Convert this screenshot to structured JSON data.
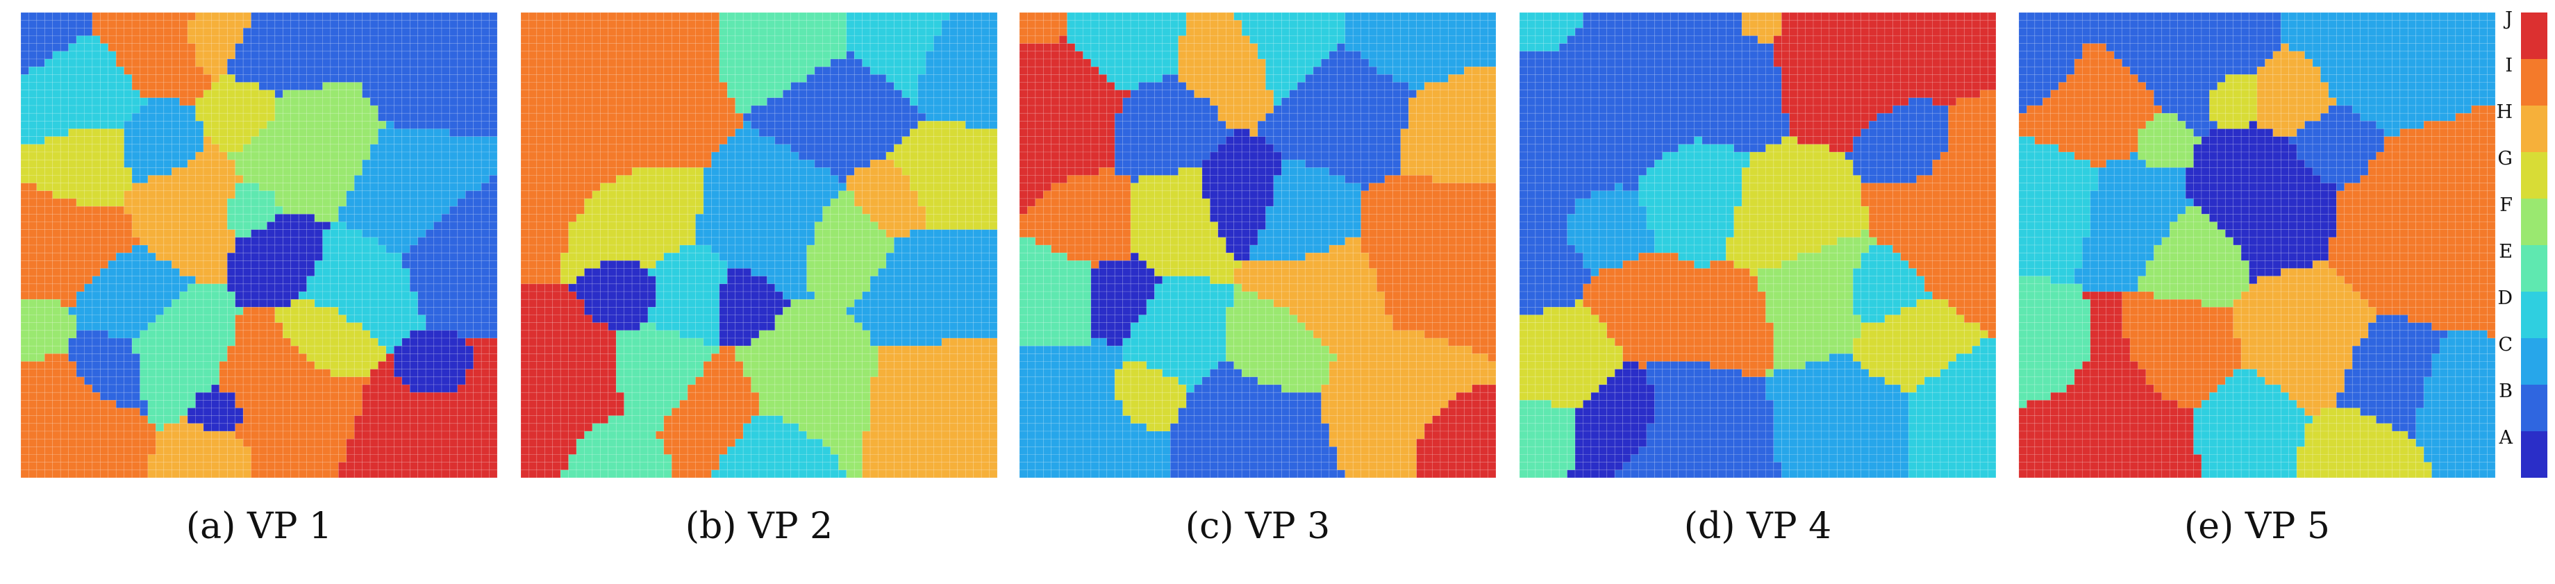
{
  "chart_data": {
    "type": "heatmap",
    "grid_size": 60,
    "categories": [
      "A",
      "B",
      "C",
      "D",
      "E",
      "F",
      "G",
      "H",
      "I",
      "J"
    ],
    "colors": {
      "A": "#2a2ec8",
      "B": "#2f66e0",
      "C": "#27a6ea",
      "D": "#2fcfe0",
      "E": "#5fe8b0",
      "F": "#9ae870",
      "G": "#d8dc36",
      "H": "#f6b03a",
      "I": "#f47a2a",
      "J": "#dc3030"
    },
    "colorbar": {
      "labels": [
        "J",
        "I",
        "H",
        "G",
        "F",
        "E",
        "D",
        "C",
        "B",
        "A"
      ],
      "placement": "right"
    },
    "panels": [
      {
        "caption": "(a) VP 1",
        "background": "D",
        "regions": [
          [
            "B",
            0.0,
            0.05,
            0.18
          ],
          [
            "I",
            0.3,
            0.0,
            0.17
          ],
          [
            "H",
            0.4,
            0.02,
            0.12
          ],
          [
            "B",
            0.55,
            0.08,
            0.14
          ],
          [
            "F",
            0.58,
            0.28,
            0.16
          ],
          [
            "G",
            0.48,
            0.22,
            0.1
          ],
          [
            "B",
            0.86,
            0.1,
            0.14
          ],
          [
            "C",
            0.82,
            0.4,
            0.14
          ],
          [
            "D",
            0.08,
            0.16,
            0.16
          ],
          [
            "G",
            0.12,
            0.34,
            0.13
          ],
          [
            "I",
            0.08,
            0.48,
            0.16
          ],
          [
            "H",
            0.35,
            0.4,
            0.14
          ],
          [
            "C",
            0.3,
            0.3,
            0.1
          ],
          [
            "A",
            0.55,
            0.52,
            0.1
          ],
          [
            "E",
            0.48,
            0.42,
            0.07
          ],
          [
            "D",
            0.7,
            0.58,
            0.12
          ],
          [
            "B",
            0.92,
            0.5,
            0.13
          ],
          [
            "C",
            0.22,
            0.62,
            0.12
          ],
          [
            "E",
            0.32,
            0.72,
            0.12
          ],
          [
            "I",
            0.08,
            0.85,
            0.14
          ],
          [
            "B",
            0.18,
            0.76,
            0.1
          ],
          [
            "I",
            0.55,
            0.82,
            0.15
          ],
          [
            "G",
            0.64,
            0.7,
            0.1
          ],
          [
            "J",
            0.86,
            0.92,
            0.15
          ],
          [
            "A",
            0.86,
            0.78,
            0.07
          ],
          [
            "H",
            0.4,
            0.95,
            0.08
          ],
          [
            "F",
            0.04,
            0.68,
            0.08
          ],
          [
            "A",
            0.42,
            0.86,
            0.06
          ]
        ]
      },
      {
        "caption": "(b) VP 2",
        "background": "C",
        "regions": [
          [
            "I",
            0.15,
            0.25,
            0.2
          ],
          [
            "I",
            0.22,
            0.05,
            0.14
          ],
          [
            "E",
            0.6,
            0.05,
            0.14
          ],
          [
            "B",
            0.68,
            0.18,
            0.14
          ],
          [
            "D",
            0.78,
            0.04,
            0.16
          ],
          [
            "C",
            0.92,
            0.1,
            0.12
          ],
          [
            "G",
            0.88,
            0.35,
            0.1
          ],
          [
            "H",
            0.78,
            0.4,
            0.08
          ],
          [
            "G",
            0.24,
            0.42,
            0.13
          ],
          [
            "D",
            0.36,
            0.6,
            0.1
          ],
          [
            "C",
            0.52,
            0.45,
            0.14
          ],
          [
            "F",
            0.68,
            0.5,
            0.1
          ],
          [
            "C",
            0.85,
            0.6,
            0.12
          ],
          [
            "J",
            0.08,
            0.8,
            0.13
          ],
          [
            "A",
            0.46,
            0.62,
            0.08
          ],
          [
            "E",
            0.3,
            0.78,
            0.1
          ],
          [
            "I",
            0.4,
            0.85,
            0.1
          ],
          [
            "F",
            0.6,
            0.78,
            0.12
          ],
          [
            "H",
            0.88,
            0.82,
            0.12
          ],
          [
            "D",
            0.52,
            0.95,
            0.09
          ],
          [
            "A",
            0.22,
            0.6,
            0.07
          ],
          [
            "E",
            0.2,
            0.95,
            0.08
          ]
        ]
      },
      {
        "caption": "(c) VP 3",
        "background": "F",
        "regions": [
          [
            "J",
            0.06,
            0.18,
            0.16
          ],
          [
            "I",
            0.04,
            0.02,
            0.08
          ],
          [
            "D",
            0.2,
            0.05,
            0.12
          ],
          [
            "D",
            0.55,
            0.05,
            0.12
          ],
          [
            "H",
            0.45,
            0.1,
            0.1
          ],
          [
            "C",
            0.8,
            0.05,
            0.12
          ],
          [
            "B",
            0.7,
            0.2,
            0.13
          ],
          [
            "H",
            0.9,
            0.25,
            0.1
          ],
          [
            "B",
            0.3,
            0.25,
            0.1
          ],
          [
            "G",
            0.34,
            0.44,
            0.1
          ],
          [
            "A",
            0.45,
            0.4,
            0.09
          ],
          [
            "C",
            0.6,
            0.45,
            0.1
          ],
          [
            "H",
            0.65,
            0.6,
            0.12
          ],
          [
            "I",
            0.86,
            0.52,
            0.14
          ],
          [
            "I",
            0.15,
            0.45,
            0.09
          ],
          [
            "E",
            0.08,
            0.62,
            0.1
          ],
          [
            "A",
            0.2,
            0.62,
            0.08
          ],
          [
            "D",
            0.32,
            0.7,
            0.1
          ],
          [
            "C",
            0.12,
            0.88,
            0.16
          ],
          [
            "B",
            0.48,
            0.9,
            0.13
          ],
          [
            "F",
            0.55,
            0.72,
            0.1
          ],
          [
            "H",
            0.78,
            0.82,
            0.12
          ],
          [
            "J",
            0.92,
            0.92,
            0.08
          ],
          [
            "G",
            0.26,
            0.82,
            0.08
          ]
        ]
      },
      {
        "caption": "(d) VP 4",
        "background": "E",
        "regions": [
          [
            "B",
            0.15,
            0.2,
            0.22
          ],
          [
            "B",
            0.4,
            0.1,
            0.16
          ],
          [
            "D",
            0.05,
            0.02,
            0.1
          ],
          [
            "H",
            0.5,
            0.02,
            0.06
          ],
          [
            "J",
            0.66,
            0.08,
            0.14
          ],
          [
            "J",
            0.82,
            0.02,
            0.12
          ],
          [
            "I",
            0.92,
            0.42,
            0.14
          ],
          [
            "B",
            0.82,
            0.3,
            0.08
          ],
          [
            "D",
            0.35,
            0.4,
            0.12
          ],
          [
            "C",
            0.2,
            0.45,
            0.09
          ],
          [
            "I",
            0.28,
            0.62,
            0.1
          ],
          [
            "G",
            0.56,
            0.45,
            0.12
          ],
          [
            "I",
            0.44,
            0.65,
            0.09
          ],
          [
            "F",
            0.62,
            0.6,
            0.12
          ],
          [
            "D",
            0.75,
            0.6,
            0.08
          ],
          [
            "G",
            0.8,
            0.72,
            0.09
          ],
          [
            "B",
            0.35,
            0.92,
            0.13
          ],
          [
            "A",
            0.22,
            0.88,
            0.09
          ],
          [
            "C",
            0.7,
            0.88,
            0.12
          ],
          [
            "D",
            0.9,
            0.88,
            0.1
          ],
          [
            "G",
            0.1,
            0.75,
            0.09
          ],
          [
            "B",
            0.05,
            0.55,
            0.07
          ],
          [
            "E",
            0.05,
            0.9,
            0.06
          ]
        ]
      },
      {
        "caption": "(e) VP 5",
        "background": "E",
        "regions": [
          [
            "B",
            0.35,
            0.05,
            0.14
          ],
          [
            "C",
            0.75,
            0.08,
            0.14
          ],
          [
            "I",
            0.18,
            0.2,
            0.1
          ],
          [
            "B",
            0.05,
            0.1,
            0.07
          ],
          [
            "H",
            0.58,
            0.18,
            0.08
          ],
          [
            "A",
            0.52,
            0.4,
            0.12
          ],
          [
            "B",
            0.66,
            0.28,
            0.08
          ],
          [
            "I",
            0.86,
            0.45,
            0.15
          ],
          [
            "C",
            0.24,
            0.42,
            0.09
          ],
          [
            "D",
            0.08,
            0.4,
            0.08
          ],
          [
            "F",
            0.38,
            0.52,
            0.08
          ],
          [
            "H",
            0.6,
            0.7,
            0.11
          ],
          [
            "B",
            0.78,
            0.78,
            0.09
          ],
          [
            "J",
            0.18,
            0.9,
            0.14
          ],
          [
            "I",
            0.35,
            0.74,
            0.09
          ],
          [
            "E",
            0.05,
            0.75,
            0.08
          ],
          [
            "D",
            0.48,
            0.88,
            0.09
          ],
          [
            "G",
            0.7,
            0.95,
            0.08
          ],
          [
            "C",
            0.92,
            0.82,
            0.08
          ],
          [
            "G",
            0.45,
            0.18,
            0.05
          ],
          [
            "F",
            0.3,
            0.28,
            0.05
          ]
        ]
      }
    ]
  }
}
